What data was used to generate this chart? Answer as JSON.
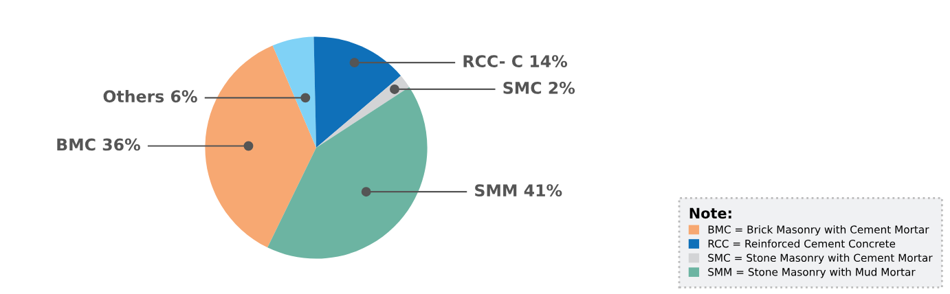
{
  "chart_data": {
    "type": "pie",
    "categories": [
      "BMC 36%",
      "Others 6%",
      "RCC- C 14%",
      "SMC 2%",
      "SMM 41%"
    ],
    "values": [
      36,
      6,
      14,
      2,
      41
    ],
    "colors": [
      "#f7a872",
      "#80d2f6",
      "#0f70b9",
      "#d3d4d6",
      "#6cb4a2"
    ],
    "legend_title": "Note:",
    "annotations": [
      "BMC = Brick Masonry with Cement Mortar",
      "RCC = Reinforced Cement Concrete",
      "SMC = Stone Masonry with Cement Mortar",
      "SMM = Stone Masonry with Mud Mortar"
    ]
  }
}
